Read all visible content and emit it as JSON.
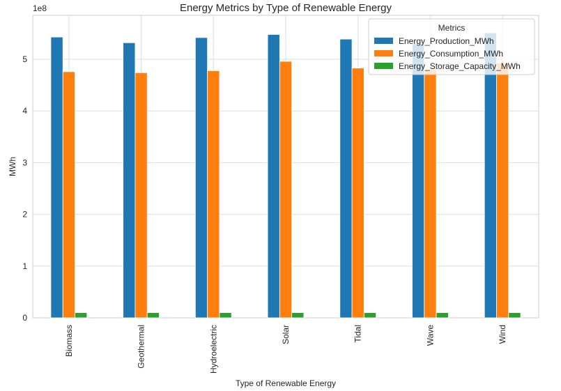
{
  "chart_data": {
    "type": "bar",
    "title": "Energy Metrics by Type of Renewable Energy",
    "xlabel": "Type of Renewable Energy",
    "ylabel": "MWh",
    "y_scale_label": "1e8",
    "y_ticks": [
      "0",
      "1",
      "2",
      "3",
      "4",
      "5"
    ],
    "ylim": [
      0,
      5.85
    ],
    "y_multiplier": 100000000,
    "grid": true,
    "legend_position": "top-right",
    "legend_title": "Metrics",
    "categories": [
      "Biomass",
      "Geothermal",
      "Hydroelectric",
      "Solar",
      "Tidal",
      "Wave",
      "Wind"
    ],
    "series": [
      {
        "name": "Energy_Production_MWh",
        "color": "#1f77b4",
        "values": [
          5.43,
          5.32,
          5.42,
          5.48,
          5.39,
          5.3,
          5.51
        ]
      },
      {
        "name": "Energy_Consumption_MWh",
        "color": "#ff7f0e",
        "values": [
          4.76,
          4.74,
          4.78,
          4.96,
          4.83,
          4.8,
          4.93
        ]
      },
      {
        "name": "Energy_Storage_Capacity_MWh",
        "color": "#2ca02c",
        "values": [
          0.1,
          0.1,
          0.1,
          0.1,
          0.1,
          0.1,
          0.1
        ]
      }
    ]
  }
}
